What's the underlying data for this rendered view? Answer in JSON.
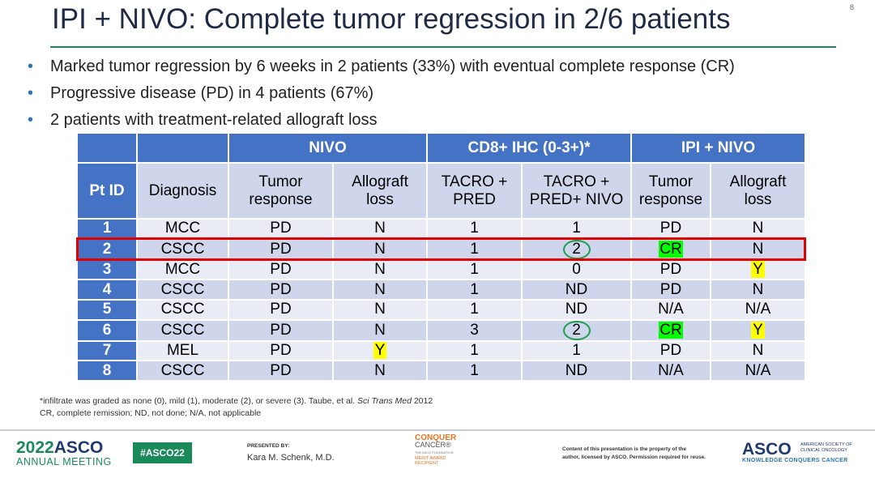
{
  "slide": {
    "title": "IPI + NIVO: Complete tumor regression in 2/6 patients",
    "page_number": "8",
    "bullets": [
      "Marked tumor regression by 6 weeks in 2 patients (33%) with eventual complete response (CR)",
      "Progressive disease (PD) in 4 patients (67%)",
      "2 patients with treatment-related allograft loss"
    ]
  },
  "table": {
    "group_headers": [
      "NIVO",
      "CD8+ IHC (0-3+)*",
      "IPI + NIVO"
    ],
    "columns": [
      "Pt ID",
      "Diagnosis",
      "Tumor response",
      "Allograft loss",
      "TACRO + PRED",
      "TACRO + PRED+ NIVO",
      "Tumor response",
      "Allograft loss"
    ],
    "rows": [
      [
        "1",
        "MCC",
        "PD",
        "N",
        "1",
        "1",
        "PD",
        "N"
      ],
      [
        "2",
        "CSCC",
        "PD",
        "N",
        "1",
        "2",
        "CR",
        "N"
      ],
      [
        "3",
        "MCC",
        "PD",
        "N",
        "1",
        "0",
        "PD",
        "Y"
      ],
      [
        "4",
        "CSCC",
        "PD",
        "N",
        "1",
        "ND",
        "PD",
        "N"
      ],
      [
        "5",
        "CSCC",
        "PD",
        "N",
        "1",
        "ND",
        "N/A",
        "N/A"
      ],
      [
        "6",
        "CSCC",
        "PD",
        "N",
        "3",
        "2",
        "CR",
        "Y"
      ],
      [
        "7",
        "MEL",
        "PD",
        "Y",
        "1",
        "1",
        "PD",
        "N"
      ],
      [
        "8",
        "CSCC",
        "PD",
        "N",
        "1",
        "ND",
        "N/A",
        "N/A"
      ]
    ],
    "highlight_colors": {
      "green": "#00ff00",
      "yellow": "#ffff00",
      "row_box": "#e00000",
      "circle": "#1aa050"
    }
  },
  "footnotes": {
    "line1_pre": "*infiltrate was graded as none (0), mild (1), moderate (2), or severe (3). Taube, et al. ",
    "line1_journal": "Sci Trans Med",
    "line1_post": " 2012",
    "line2": "CR, complete remission; ND, not done; N/A, not applicable"
  },
  "footer": {
    "meeting_year": "2022",
    "meeting_org": "ASCO",
    "meeting_sub": "ANNUAL MEETING",
    "hashtag": "#ASCO22",
    "presented_by": "PRESENTED BY:",
    "presenter": "Kara M. Schenk, M.D.",
    "cc_1": "CONQUER",
    "cc_2": "CANCER®",
    "cc_3": "THE ASCO FOUNDATION",
    "cc_4": "MERIT AWARD",
    "cc_5": "RECIPIENT",
    "copyright_1": "Content of this presentation is the property of the",
    "copyright_2": "author, licensed by ASCO. Permission required for reuse.",
    "asco_logo": "ASCO",
    "asco_society_1": "AMERICAN SOCIETY OF",
    "asco_society_2": "CLINICAL ONCOLOGY",
    "asco_tagline": "KNOWLEDGE CONQUERS CANCER"
  }
}
